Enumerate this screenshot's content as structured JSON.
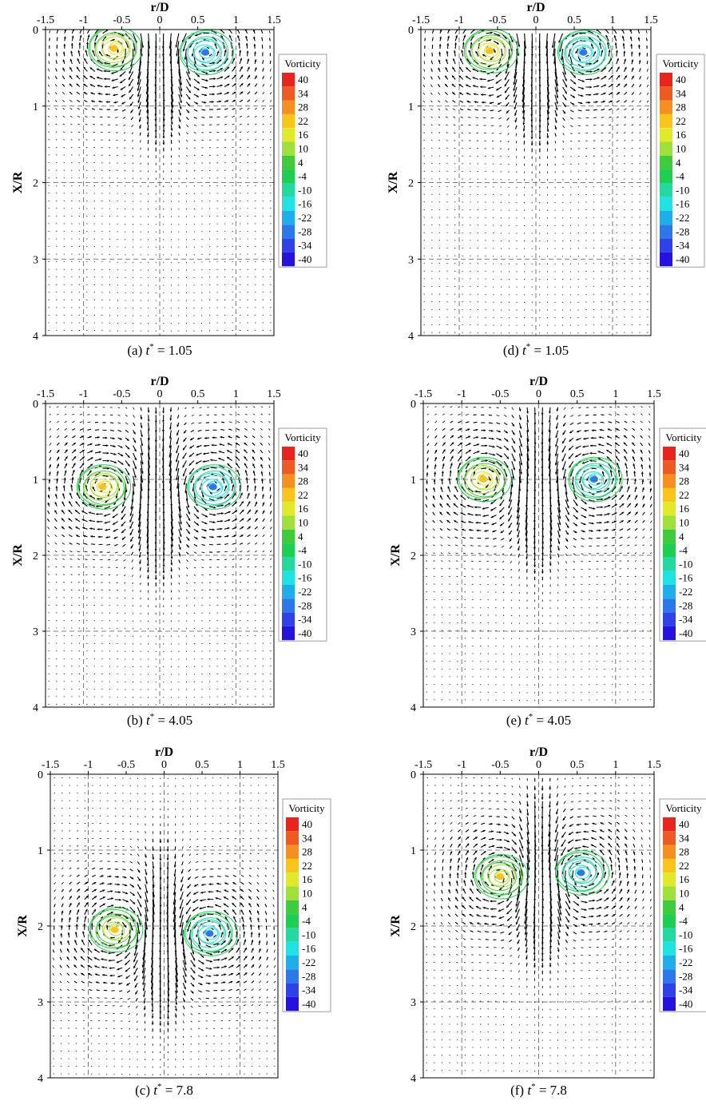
{
  "figure": {
    "panels": [
      {
        "id": "a",
        "caption_prefix": "(a) ",
        "t_symbol": "t",
        "t_exp": "*",
        "caption_suffix": " = 1.05"
      },
      {
        "id": "d",
        "caption_prefix": "(d) ",
        "t_symbol": "t",
        "t_exp": "*",
        "caption_suffix": " = 1.05"
      },
      {
        "id": "b",
        "caption_prefix": "(b) ",
        "t_symbol": "t",
        "t_exp": "*",
        "caption_suffix": " = 4.05"
      },
      {
        "id": "e",
        "caption_prefix": "(e) ",
        "t_symbol": "t",
        "t_exp": "*",
        "caption_suffix": " = 4.05"
      },
      {
        "id": "c",
        "caption_prefix": "(c) ",
        "t_symbol": "t",
        "t_exp": "*",
        "caption_suffix": " = 7.8"
      },
      {
        "id": "f",
        "caption_prefix": "(f) ",
        "t_symbol": "t",
        "t_exp": "*",
        "caption_suffix": " = 7.8"
      }
    ]
  },
  "legend": {
    "title": "Vorticity",
    "levels": [
      "40",
      "34",
      "28",
      "22",
      "16",
      "10",
      "4",
      "-4",
      "-10",
      "-16",
      "-22",
      "-28",
      "-34",
      "-40"
    ],
    "colors": [
      "#e8241d",
      "#ef5a22",
      "#f58f1f",
      "#f9c51a",
      "#e1ea2a",
      "#9fe03a",
      "#3fcc3c",
      "#1ccf50",
      "#22d9a0",
      "#1fe2e2",
      "#1eaee9",
      "#2a78ea",
      "#2f42ea",
      "#2511e0"
    ]
  },
  "chart_data": [
    {
      "type": "heatmap",
      "panel": "a",
      "xlabel": "r/D",
      "ylabel": "X/R",
      "xlim": [
        -1.5,
        1.5
      ],
      "ylim": [
        4,
        0
      ],
      "x_ticks": [
        "-1.5",
        "-1",
        "-0.5",
        "0",
        "0.5",
        "1",
        "1.5"
      ],
      "y_ticks": [
        "0",
        "1",
        "2",
        "3",
        "4"
      ],
      "vortices": [
        {
          "r": -0.6,
          "x": 0.25,
          "peak_vorticity": 25
        },
        {
          "r": 0.6,
          "x": 0.3,
          "peak_vorticity": -18
        }
      ]
    },
    {
      "type": "heatmap",
      "panel": "d",
      "xlabel": "r/D",
      "ylabel": "X/R",
      "xlim": [
        -1.5,
        1.5
      ],
      "ylim": [
        4,
        0
      ],
      "x_ticks": [
        "-1.5",
        "-1",
        "-0.5",
        "0",
        "0.5",
        "1",
        "1.5"
      ],
      "y_ticks": [
        "0",
        "1",
        "2",
        "3",
        "4"
      ],
      "vortices": [
        {
          "r": -0.6,
          "x": 0.28,
          "peak_vorticity": 25
        },
        {
          "r": 0.62,
          "x": 0.3,
          "peak_vorticity": -18
        }
      ]
    },
    {
      "type": "heatmap",
      "panel": "b",
      "xlabel": "r/D",
      "ylabel": "X/R",
      "xlim": [
        -1.5,
        1.5
      ],
      "ylim": [
        4,
        0
      ],
      "x_ticks": [
        "-1.5",
        "-1",
        "-0.5",
        "0",
        "0.5",
        "1",
        "1.5"
      ],
      "y_ticks": [
        "0",
        "1",
        "2",
        "3",
        "4"
      ],
      "vortices": [
        {
          "r": -0.75,
          "x": 1.1,
          "peak_vorticity": 22
        },
        {
          "r": 0.7,
          "x": 1.1,
          "peak_vorticity": -18
        }
      ]
    },
    {
      "type": "heatmap",
      "panel": "e",
      "xlabel": "r/D",
      "ylabel": "X/R",
      "xlim": [
        -1.5,
        1.5
      ],
      "ylim": [
        4,
        0
      ],
      "x_ticks": [
        "-1.5",
        "-1",
        "-0.5",
        "0",
        "0.5",
        "1",
        "1.5"
      ],
      "y_ticks": [
        "0",
        "1",
        "2",
        "3",
        "4"
      ],
      "vortices": [
        {
          "r": -0.72,
          "x": 1.0,
          "peak_vorticity": 25
        },
        {
          "r": 0.72,
          "x": 1.0,
          "peak_vorticity": -16
        }
      ]
    },
    {
      "type": "heatmap",
      "panel": "c",
      "xlabel": "r/D",
      "ylabel": "X/R",
      "xlim": [
        -1.5,
        1.5
      ],
      "ylim": [
        4,
        0
      ],
      "x_ticks": [
        "-1.5",
        "-1",
        "-0.5",
        "0",
        "0.5",
        "1",
        "1.5"
      ],
      "y_ticks": [
        "0",
        "1",
        "2",
        "3",
        "4"
      ],
      "vortices": [
        {
          "r": -0.65,
          "x": 2.05,
          "peak_vorticity": 16
        },
        {
          "r": 0.6,
          "x": 2.1,
          "peak_vorticity": -14
        }
      ]
    },
    {
      "type": "heatmap",
      "panel": "f",
      "xlabel": "r/D",
      "ylabel": "X/R",
      "xlim": [
        -1.5,
        1.5
      ],
      "ylim": [
        4,
        0
      ],
      "x_ticks": [
        "-1.5",
        "-1",
        "-0.5",
        "0",
        "0.5",
        "1",
        "1.5"
      ],
      "y_ticks": [
        "0",
        "1",
        "2",
        "3",
        "4"
      ],
      "vortices": [
        {
          "r": -0.5,
          "x": 1.35,
          "peak_vorticity": 16
        },
        {
          "r": 0.55,
          "x": 1.3,
          "peak_vorticity": -12
        }
      ]
    }
  ]
}
